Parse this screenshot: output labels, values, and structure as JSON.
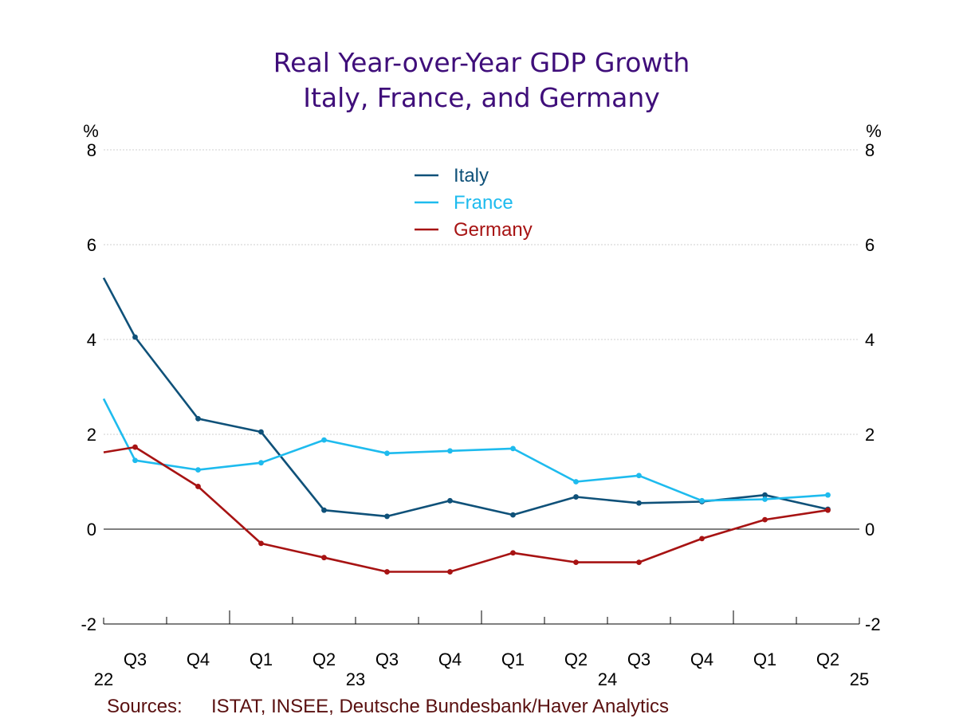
{
  "chart_data": {
    "type": "line",
    "title": [
      "Real Year-over-Year GDP Growth",
      "Italy, France, and Germany"
    ],
    "ylabel_left": "%",
    "ylabel_right": "%",
    "ylim": [
      -2,
      8
    ],
    "yticks": [
      "8",
      "6",
      "4",
      "2",
      "0",
      "-2"
    ],
    "ytick_values": [
      8,
      6,
      4,
      2,
      0,
      -2
    ],
    "grid": true,
    "legend_position": "top-center",
    "quarter_labels": [
      "Q3",
      "Q4",
      "Q1",
      "Q2",
      "Q3",
      "Q4",
      "Q1",
      "Q2",
      "Q3",
      "Q4",
      "Q1",
      "Q2"
    ],
    "year_labels": [
      "22",
      "23",
      "24",
      "25"
    ],
    "series": [
      {
        "name": "Italy",
        "color": "#0f5179",
        "lead_in": 5.3,
        "values": [
          4.05,
          2.33,
          2.05,
          0.4,
          0.27,
          0.6,
          0.3,
          0.68,
          0.55,
          0.58,
          0.72,
          0.42
        ]
      },
      {
        "name": "France",
        "color": "#1ebbee",
        "lead_in": 2.75,
        "values": [
          1.45,
          1.25,
          1.4,
          1.88,
          1.6,
          1.65,
          1.7,
          1.0,
          1.13,
          0.6,
          0.63,
          0.72
        ]
      },
      {
        "name": "Germany",
        "color": "#a71313",
        "lead_in": 1.62,
        "values": [
          1.73,
          0.9,
          -0.3,
          -0.6,
          -0.9,
          -0.9,
          -0.5,
          -0.7,
          -0.7,
          -0.2,
          0.2,
          0.4
        ]
      }
    ],
    "source_label": "Sources:",
    "source_text": "ISTAT, INSEE, Deutsche Bundesbank/Haver Analytics"
  },
  "colors": {
    "title": "#3f0e7a",
    "grid": "#cfcfcf",
    "axis": "#000000",
    "source": "#5a1010"
  }
}
